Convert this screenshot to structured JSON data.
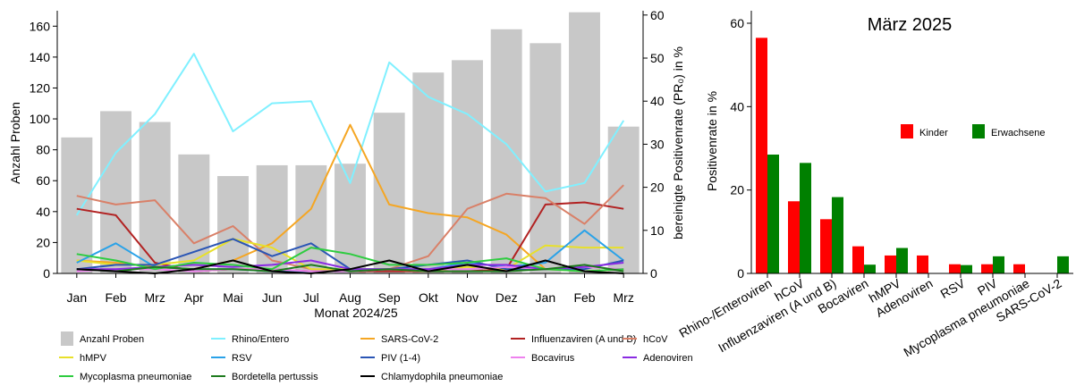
{
  "chart_data": [
    {
      "type": "bar+line",
      "title": "",
      "xlabel": "Monat 2024/25",
      "ylabel_left": "Anzahl Proben",
      "ylabel_right": "bereinigte Positivenrate (PR₀) in %",
      "ylim_left": [
        0,
        170
      ],
      "ylim_right": [
        0,
        61
      ],
      "yticks_left": [
        "0",
        "20",
        "40",
        "60",
        "80",
        "100",
        "120",
        "140",
        "160"
      ],
      "yticks_right": [
        "0",
        "10",
        "20",
        "30",
        "40",
        "50",
        "60"
      ],
      "categories": [
        "Jan",
        "Feb",
        "Mrz",
        "Apr",
        "Mai",
        "Jun",
        "Jul",
        "Aug",
        "Sep",
        "Okt",
        "Nov",
        "Dez",
        "Jan",
        "Feb",
        "Mrz"
      ],
      "bars": {
        "name": "Anzahl Proben",
        "color": "#c8c8c8",
        "values": [
          88,
          105,
          98,
          77,
          63,
          70,
          70,
          71,
          104,
          130,
          138,
          158,
          149,
          169,
          95
        ]
      },
      "series": [
        {
          "name": "Rhino/Entero",
          "color": "#80f0ff",
          "values": [
            13.5,
            28,
            37,
            51,
            33,
            39.5,
            40,
            21,
            49,
            41,
            37,
            30,
            19,
            21,
            35.5
          ]
        },
        {
          "name": "SARS-CoV-2",
          "color": "#f5a623",
          "values": [
            3,
            2.5,
            1.5,
            1,
            3,
            7,
            15,
            34.5,
            16,
            14,
            13,
            9,
            1,
            0.5,
            1
          ]
        },
        {
          "name": "Influenzaviren (A und B)",
          "color": "#b22222",
          "values": [
            15,
            13.5,
            2.5,
            0.5,
            1,
            1,
            0.5,
            0.5,
            0.5,
            0.5,
            0.5,
            1,
            16,
            16.5,
            15
          ]
        },
        {
          "name": "hCoV",
          "color": "#d98068",
          "values": [
            18,
            16,
            17,
            7,
            11,
            3,
            1,
            0.5,
            1,
            4,
            15,
            18.5,
            17.5,
            11.5,
            20.5
          ]
        },
        {
          "name": "hMPV",
          "color": "#e8e02a",
          "values": [
            3,
            2,
            2,
            3,
            8,
            6,
            1,
            1,
            1,
            0.5,
            1.5,
            1,
            6.5,
            6,
            6
          ]
        },
        {
          "name": "RSV",
          "color": "#2aa2e8",
          "values": [
            2.5,
            7,
            1.5,
            1,
            1,
            0.5,
            0.5,
            0.5,
            1,
            1,
            2.5,
            1.5,
            2.5,
            10,
            3
          ]
        },
        {
          "name": "PIV (1-4)",
          "color": "#2a55b5",
          "values": [
            1,
            2,
            2,
            5,
            8,
            4,
            7,
            1,
            1,
            2,
            3,
            1,
            1,
            1,
            3
          ]
        },
        {
          "name": "Bocavirus",
          "color": "#ee82ee",
          "values": [
            0.5,
            1,
            1,
            0.5,
            1,
            1,
            0.5,
            0.5,
            1,
            1,
            1,
            1.5,
            1,
            1.5,
            1
          ]
        },
        {
          "name": "Adenoviren",
          "color": "#8a2be2",
          "values": [
            1,
            1,
            1.5,
            2,
            1.5,
            2,
            3,
            1,
            1,
            1,
            2,
            2,
            1,
            1.5,
            2.5
          ]
        },
        {
          "name": "Mycoplasma pneumoniae",
          "color": "#2ecc40",
          "values": [
            4.5,
            3,
            1,
            2.5,
            2,
            1,
            6,
            4.5,
            2,
            2,
            2.5,
            3.5,
            1,
            0.5,
            1
          ]
        },
        {
          "name": "Bordetella pertussis",
          "color": "#1e7b1e",
          "values": [
            1,
            0.5,
            1.5,
            1,
            1,
            0.5,
            2,
            0.5,
            1,
            0.5,
            0.5,
            0.5,
            1,
            2,
            0.5
          ]
        },
        {
          "name": "Chlamydophila pneumoniae",
          "color": "#000000",
          "values": [
            1,
            0.5,
            0,
            1,
            3,
            0.5,
            0,
            1,
            3,
            0.5,
            2,
            0.5,
            3,
            0.5,
            0
          ]
        }
      ],
      "grid": false,
      "legend_placement": "bottom"
    },
    {
      "type": "bar",
      "title": "März 2025",
      "xlabel": "",
      "ylabel": "Positivenrate in %",
      "ylim": [
        0,
        63
      ],
      "yticks": [
        "0",
        "20",
        "40",
        "60"
      ],
      "categories": [
        "Rhino-/Enteroviren",
        "hCoV",
        "Influenzaviren (A und B)",
        "Bocaviren",
        "hMPV",
        "Adenoviren",
        "RSV",
        "PIV",
        "Mycoplasma pneumoniae",
        "SARS-CoV-2"
      ],
      "series": [
        {
          "name": "Kinder",
          "color": "#ff0000",
          "values": [
            56.5,
            17.3,
            13,
            6.5,
            4.3,
            4.3,
            2.2,
            2.2,
            2.2,
            0
          ]
        },
        {
          "name": "Erwachsene",
          "color": "#008000",
          "values": [
            28.5,
            26.5,
            18.3,
            2.1,
            6.1,
            0,
            2,
            4.1,
            0,
            4.1
          ]
        }
      ],
      "grid": false,
      "legend_placement": "right"
    }
  ]
}
